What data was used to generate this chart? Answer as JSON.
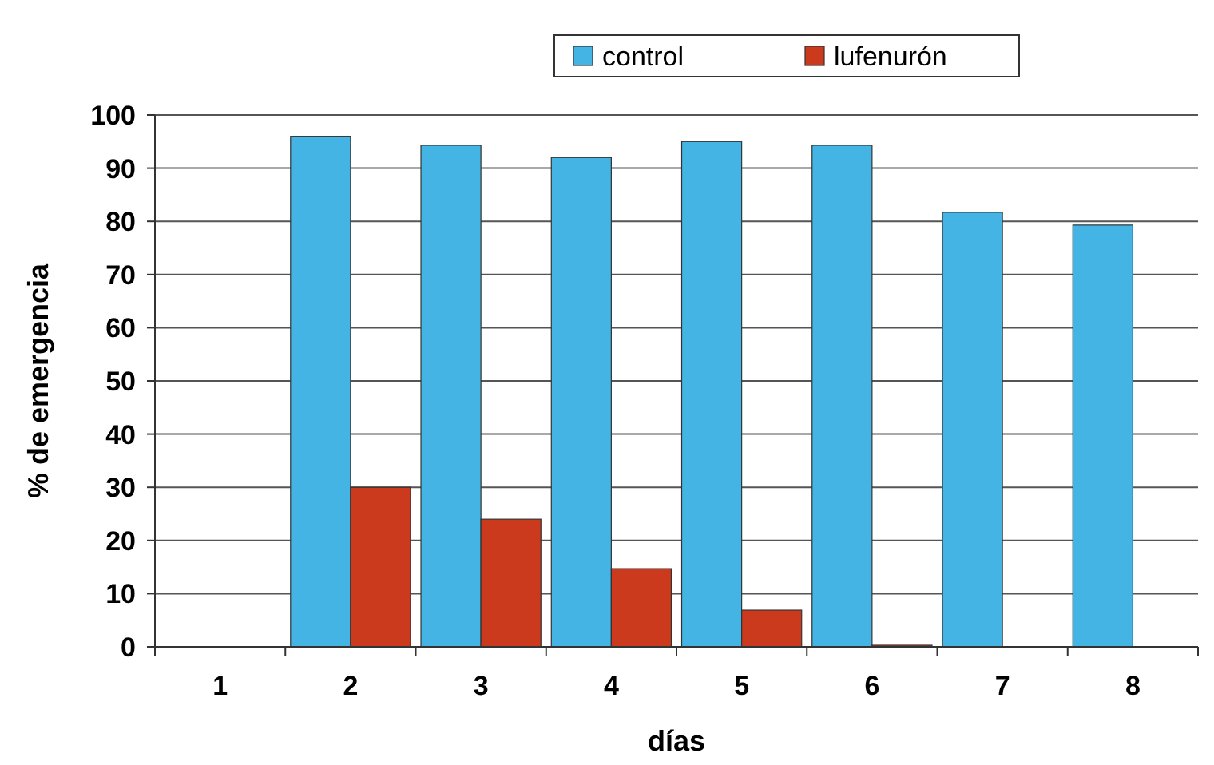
{
  "chart_data": {
    "type": "bar",
    "xlabel": "días",
    "ylabel": "% de emergencia",
    "categories": [
      "1",
      "2",
      "3",
      "4",
      "5",
      "6",
      "7",
      "8"
    ],
    "series": [
      {
        "name": "control",
        "color": "#44b4e4",
        "values": [
          null,
          96,
          94.3,
          92,
          95,
          94.3,
          81.7,
          79.3
        ]
      },
      {
        "name": "lufenurón",
        "color": "#cc3a1e",
        "values": [
          null,
          30,
          24,
          14.7,
          6.9,
          0.3,
          null,
          null
        ]
      }
    ],
    "ylim": [
      0,
      100
    ],
    "yticks": [
      0,
      10,
      20,
      30,
      40,
      50,
      60,
      70,
      80,
      90,
      100
    ],
    "grid": "y",
    "legend": "top"
  }
}
